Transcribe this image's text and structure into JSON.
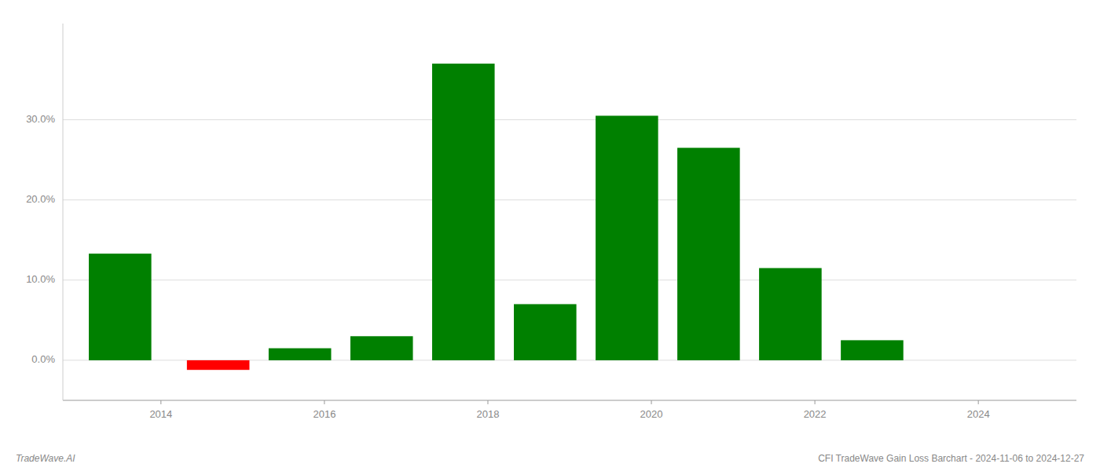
{
  "chart_data": {
    "type": "bar",
    "x": [
      2013.5,
      2014.7,
      2015.7,
      2016.7,
      2017.7,
      2018.7,
      2019.7,
      2020.7,
      2021.7,
      2022.7,
      2023.7
    ],
    "values": [
      0.133,
      -0.012,
      0.015,
      0.03,
      0.37,
      0.07,
      0.305,
      0.265,
      0.115,
      0.025,
      0.0
    ],
    "colors": [
      "#008000",
      "#ff0000",
      "#008000",
      "#008000",
      "#008000",
      "#008000",
      "#008000",
      "#008000",
      "#008000",
      "#008000",
      "#008000"
    ],
    "xlim": [
      2012.8,
      2025.2
    ],
    "ylim": [
      -0.05,
      0.42
    ],
    "xticks": [
      2014,
      2016,
      2018,
      2020,
      2022,
      2024
    ],
    "yticks": [
      {
        "value": 0.0,
        "label": "0.0%"
      },
      {
        "value": 0.1,
        "label": "10.0%"
      },
      {
        "value": 0.2,
        "label": "20.0%"
      },
      {
        "value": 0.3,
        "label": "30.0%"
      }
    ],
    "grid": true,
    "annotations": [
      "TradeWave.AI",
      "CFI TradeWave Gain Loss Barchart - 2024-11-06 to 2024-12-27"
    ]
  }
}
